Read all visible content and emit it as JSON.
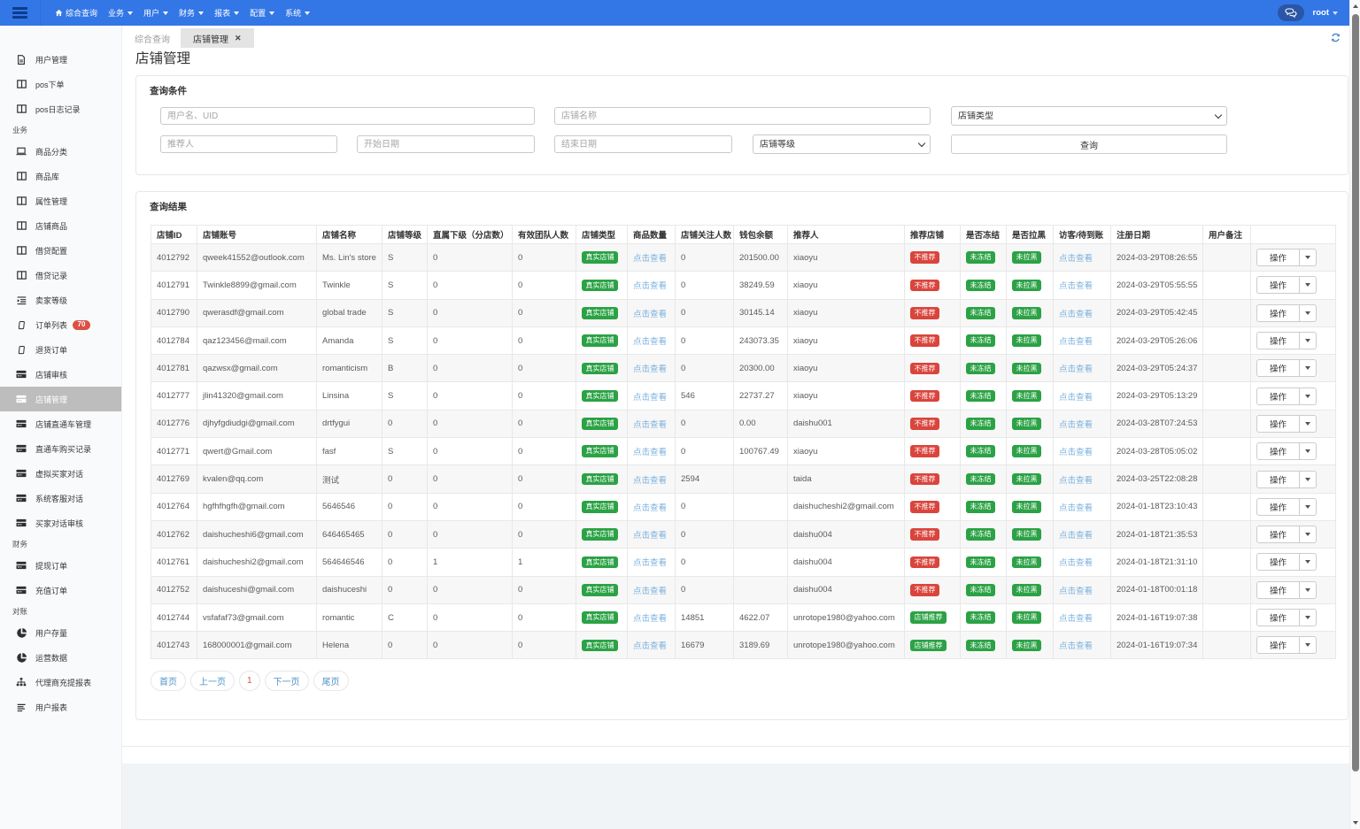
{
  "navbar": {
    "menu": [
      {
        "label": "综合查询",
        "icon": "home-icon",
        "caret": false
      },
      {
        "label": "业务",
        "caret": true
      },
      {
        "label": "用户",
        "caret": true
      },
      {
        "label": "财务",
        "caret": true
      },
      {
        "label": "报表",
        "caret": true
      },
      {
        "label": "配置",
        "caret": true
      },
      {
        "label": "系统",
        "caret": true
      }
    ],
    "user": "root"
  },
  "sidebar": {
    "items": [
      {
        "type": "item",
        "label": "用户管理",
        "icon": "file-text-icon"
      },
      {
        "type": "item",
        "label": "pos下单",
        "icon": "columns-icon"
      },
      {
        "type": "item",
        "label": "pos日志记录",
        "icon": "columns-icon"
      },
      {
        "type": "section",
        "label": "业务"
      },
      {
        "type": "item",
        "label": "商品分类",
        "icon": "laptop-icon"
      },
      {
        "type": "item",
        "label": "商品库",
        "icon": "columns-icon"
      },
      {
        "type": "item",
        "label": "属性管理",
        "icon": "columns-icon"
      },
      {
        "type": "item",
        "label": "店铺商品",
        "icon": "columns-icon"
      },
      {
        "type": "item",
        "label": "借贷配置",
        "icon": "columns-icon"
      },
      {
        "type": "item",
        "label": "借贷记录",
        "icon": "columns-icon"
      },
      {
        "type": "item",
        "label": "卖家等级",
        "icon": "indent-icon"
      },
      {
        "type": "item",
        "label": "订单列表",
        "icon": "tablet-icon",
        "badge": "70"
      },
      {
        "type": "item",
        "label": "退货订单",
        "icon": "tablet-icon"
      },
      {
        "type": "item",
        "label": "店铺审核",
        "icon": "window-icon"
      },
      {
        "type": "item",
        "label": "店铺管理",
        "icon": "window-icon",
        "active": true
      },
      {
        "type": "item",
        "label": "店铺直通车管理",
        "icon": "window-icon"
      },
      {
        "type": "item",
        "label": "直通车购买记录",
        "icon": "window-icon"
      },
      {
        "type": "item",
        "label": "虚拟买家对话",
        "icon": "window-icon"
      },
      {
        "type": "item",
        "label": "系统客服对话",
        "icon": "window-icon"
      },
      {
        "type": "item",
        "label": "买家对话审核",
        "icon": "window-icon"
      },
      {
        "type": "section",
        "label": "财务"
      },
      {
        "type": "item",
        "label": "提现订单",
        "icon": "window-icon"
      },
      {
        "type": "item",
        "label": "充值订单",
        "icon": "window-icon"
      },
      {
        "type": "section",
        "label": "对账"
      },
      {
        "type": "item",
        "label": "用户存量",
        "icon": "pie-icon"
      },
      {
        "type": "item",
        "label": "运营数据",
        "icon": "pie-icon"
      },
      {
        "type": "item",
        "label": "代理商充提报表",
        "icon": "sitemap-icon"
      },
      {
        "type": "item",
        "label": "用户报表",
        "icon": "lines-icon"
      }
    ]
  },
  "tabs": [
    {
      "label": "综合查询",
      "active": false,
      "closable": false
    },
    {
      "label": "店铺管理",
      "active": true,
      "closable": true
    }
  ],
  "page_title": "店铺管理",
  "filter": {
    "panel_title": "查询条件",
    "inputs": [
      {
        "placeholder": "用户名、UID"
      },
      {
        "placeholder": "店铺名称"
      },
      {
        "placeholder": "推荐人"
      },
      {
        "placeholder": "开始日期"
      },
      {
        "placeholder": "结束日期"
      }
    ],
    "selects": [
      {
        "value": "店铺类型"
      },
      {
        "value": "店铺等级"
      }
    ],
    "search_label": "查询"
  },
  "results": {
    "panel_title": "查询结果",
    "columns": [
      "店铺ID",
      "店铺账号",
      "店铺名称",
      "店铺等级",
      "直属下级（分店数）",
      "有效团队人数",
      "店铺类型",
      "商品数量",
      "店铺关注人数",
      "钱包余额",
      "推荐人",
      "推荐店铺",
      "是否冻结",
      "是否拉黑",
      "访客/待到账",
      "注册日期",
      "用户备注",
      ""
    ],
    "view_link": "点击查看",
    "type_badge": "真实店铺",
    "frozen_badge": "未冻结",
    "blacklist_badge": "未拉黑",
    "action_label": "操作",
    "rows": [
      {
        "id": "4012792",
        "account": "qweek41552@outlook.com",
        "name": "Ms. Lin's store",
        "level": "S",
        "sub": "0",
        "team": "0",
        "followers": "0",
        "wallet": "201500.00",
        "referrer": "xiaoyu",
        "recommend": "不推荐",
        "recommend_color": "red",
        "date": "2024-03-29T08:26:55",
        "note": ""
      },
      {
        "id": "4012791",
        "account": "Twinkle8899@gmail.com",
        "name": "Twinkle",
        "level": "S",
        "sub": "0",
        "team": "0",
        "followers": "0",
        "wallet": "38249.59",
        "referrer": "xiaoyu",
        "recommend": "不推荐",
        "recommend_color": "red",
        "date": "2024-03-29T05:55:55",
        "note": ""
      },
      {
        "id": "4012790",
        "account": "qwerasdf@gmail.com",
        "name": "global trade",
        "level": "S",
        "sub": "0",
        "team": "0",
        "followers": "0",
        "wallet": "30145.14",
        "referrer": "xiaoyu",
        "recommend": "不推荐",
        "recommend_color": "red",
        "date": "2024-03-29T05:42:45",
        "note": ""
      },
      {
        "id": "4012784",
        "account": "qaz123456@mail.com",
        "name": "Amanda",
        "level": "S",
        "sub": "0",
        "team": "0",
        "followers": "0",
        "wallet": "243073.35",
        "referrer": "xiaoyu",
        "recommend": "不推荐",
        "recommend_color": "red",
        "date": "2024-03-29T05:26:06",
        "note": ""
      },
      {
        "id": "4012781",
        "account": "qazwsx@gmail.com",
        "name": "romanticism",
        "level": "B",
        "sub": "0",
        "team": "0",
        "followers": "0",
        "wallet": "20300.00",
        "referrer": "xiaoyu",
        "recommend": "不推荐",
        "recommend_color": "red",
        "date": "2024-03-29T05:24:37",
        "note": ""
      },
      {
        "id": "4012777",
        "account": "jlin41320@gmail.com",
        "name": "Linsina",
        "level": "S",
        "sub": "0",
        "team": "0",
        "followers": "546",
        "wallet": "22737.27",
        "referrer": "xiaoyu",
        "recommend": "不推荐",
        "recommend_color": "red",
        "date": "2024-03-29T05:13:29",
        "note": ""
      },
      {
        "id": "4012776",
        "account": "djhyfgdiudgi@gmail.com",
        "name": "drtfygui",
        "level": "0",
        "sub": "0",
        "team": "0",
        "followers": "0",
        "wallet": "0.00",
        "referrer": "daishu001",
        "recommend": "不推荐",
        "recommend_color": "red",
        "date": "2024-03-28T07:24:53",
        "note": ""
      },
      {
        "id": "4012771",
        "account": "qwert@Gmail.com",
        "name": "fasf",
        "level": "S",
        "sub": "0",
        "team": "0",
        "followers": "0",
        "wallet": "100767.49",
        "referrer": "xiaoyu",
        "recommend": "不推荐",
        "recommend_color": "red",
        "date": "2024-03-28T05:05:02",
        "note": ""
      },
      {
        "id": "4012769",
        "account": "kvalen@qq.com",
        "name": "测试",
        "level": "0",
        "sub": "0",
        "team": "0",
        "followers": "2594",
        "wallet": "",
        "referrer": "taida",
        "recommend": "不推荐",
        "recommend_color": "red",
        "date": "2024-03-25T22:08:28",
        "note": ""
      },
      {
        "id": "4012764",
        "account": "hgfhfhgfh@gmail.com",
        "name": "5646546",
        "level": "0",
        "sub": "0",
        "team": "0",
        "followers": "0",
        "wallet": "",
        "referrer": "daishucheshi2@gmail.com",
        "recommend": "不推荐",
        "recommend_color": "red",
        "date": "2024-01-18T23:10:43",
        "note": ""
      },
      {
        "id": "4012762",
        "account": "daishucheshi6@gmail.com",
        "name": "646465465",
        "level": "0",
        "sub": "0",
        "team": "0",
        "followers": "0",
        "wallet": "",
        "referrer": "daishu004",
        "recommend": "不推荐",
        "recommend_color": "red",
        "date": "2024-01-18T21:35:53",
        "note": ""
      },
      {
        "id": "4012761",
        "account": "daishucheshi2@gmail.com",
        "name": "564646546",
        "level": "0",
        "sub": "1",
        "team": "1",
        "followers": "0",
        "wallet": "",
        "referrer": "daishu004",
        "recommend": "不推荐",
        "recommend_color": "red",
        "date": "2024-01-18T21:31:10",
        "note": ""
      },
      {
        "id": "4012752",
        "account": "daishuceshi@gmail.com",
        "name": "daishuceshi",
        "level": "0",
        "sub": "0",
        "team": "0",
        "followers": "0",
        "wallet": "",
        "referrer": "daishu004",
        "recommend": "不推荐",
        "recommend_color": "red",
        "date": "2024-01-18T00:01:18",
        "note": ""
      },
      {
        "id": "4012744",
        "account": "vsfafaf73@gmail.com",
        "name": "romantic",
        "level": "C",
        "sub": "0",
        "team": "0",
        "followers": "14851",
        "wallet": "4622.07",
        "referrer": "unrotope1980@yahoo.com",
        "recommend": "店铺推荐",
        "recommend_color": "green",
        "date": "2024-01-16T19:07:38",
        "note": ""
      },
      {
        "id": "4012743",
        "account": "168000001@gmail.com",
        "name": "Helena",
        "level": "0",
        "sub": "0",
        "team": "0",
        "followers": "16679",
        "wallet": "3189.69",
        "referrer": "unrotope1980@yahoo.com",
        "recommend": "店铺推荐",
        "recommend_color": "green",
        "date": "2024-01-16T19:07:34",
        "note": ""
      }
    ]
  },
  "pagination": {
    "first": "首页",
    "prev": "上一页",
    "current": "1",
    "next": "下一页",
    "last": "尾页"
  },
  "colors": {
    "navbar": "#3377e6",
    "badge_green": "#2ba245",
    "badge_red": "#d9453c",
    "link_blue": "#7cb1dd",
    "sidebar_active": "#bdbdbd"
  }
}
